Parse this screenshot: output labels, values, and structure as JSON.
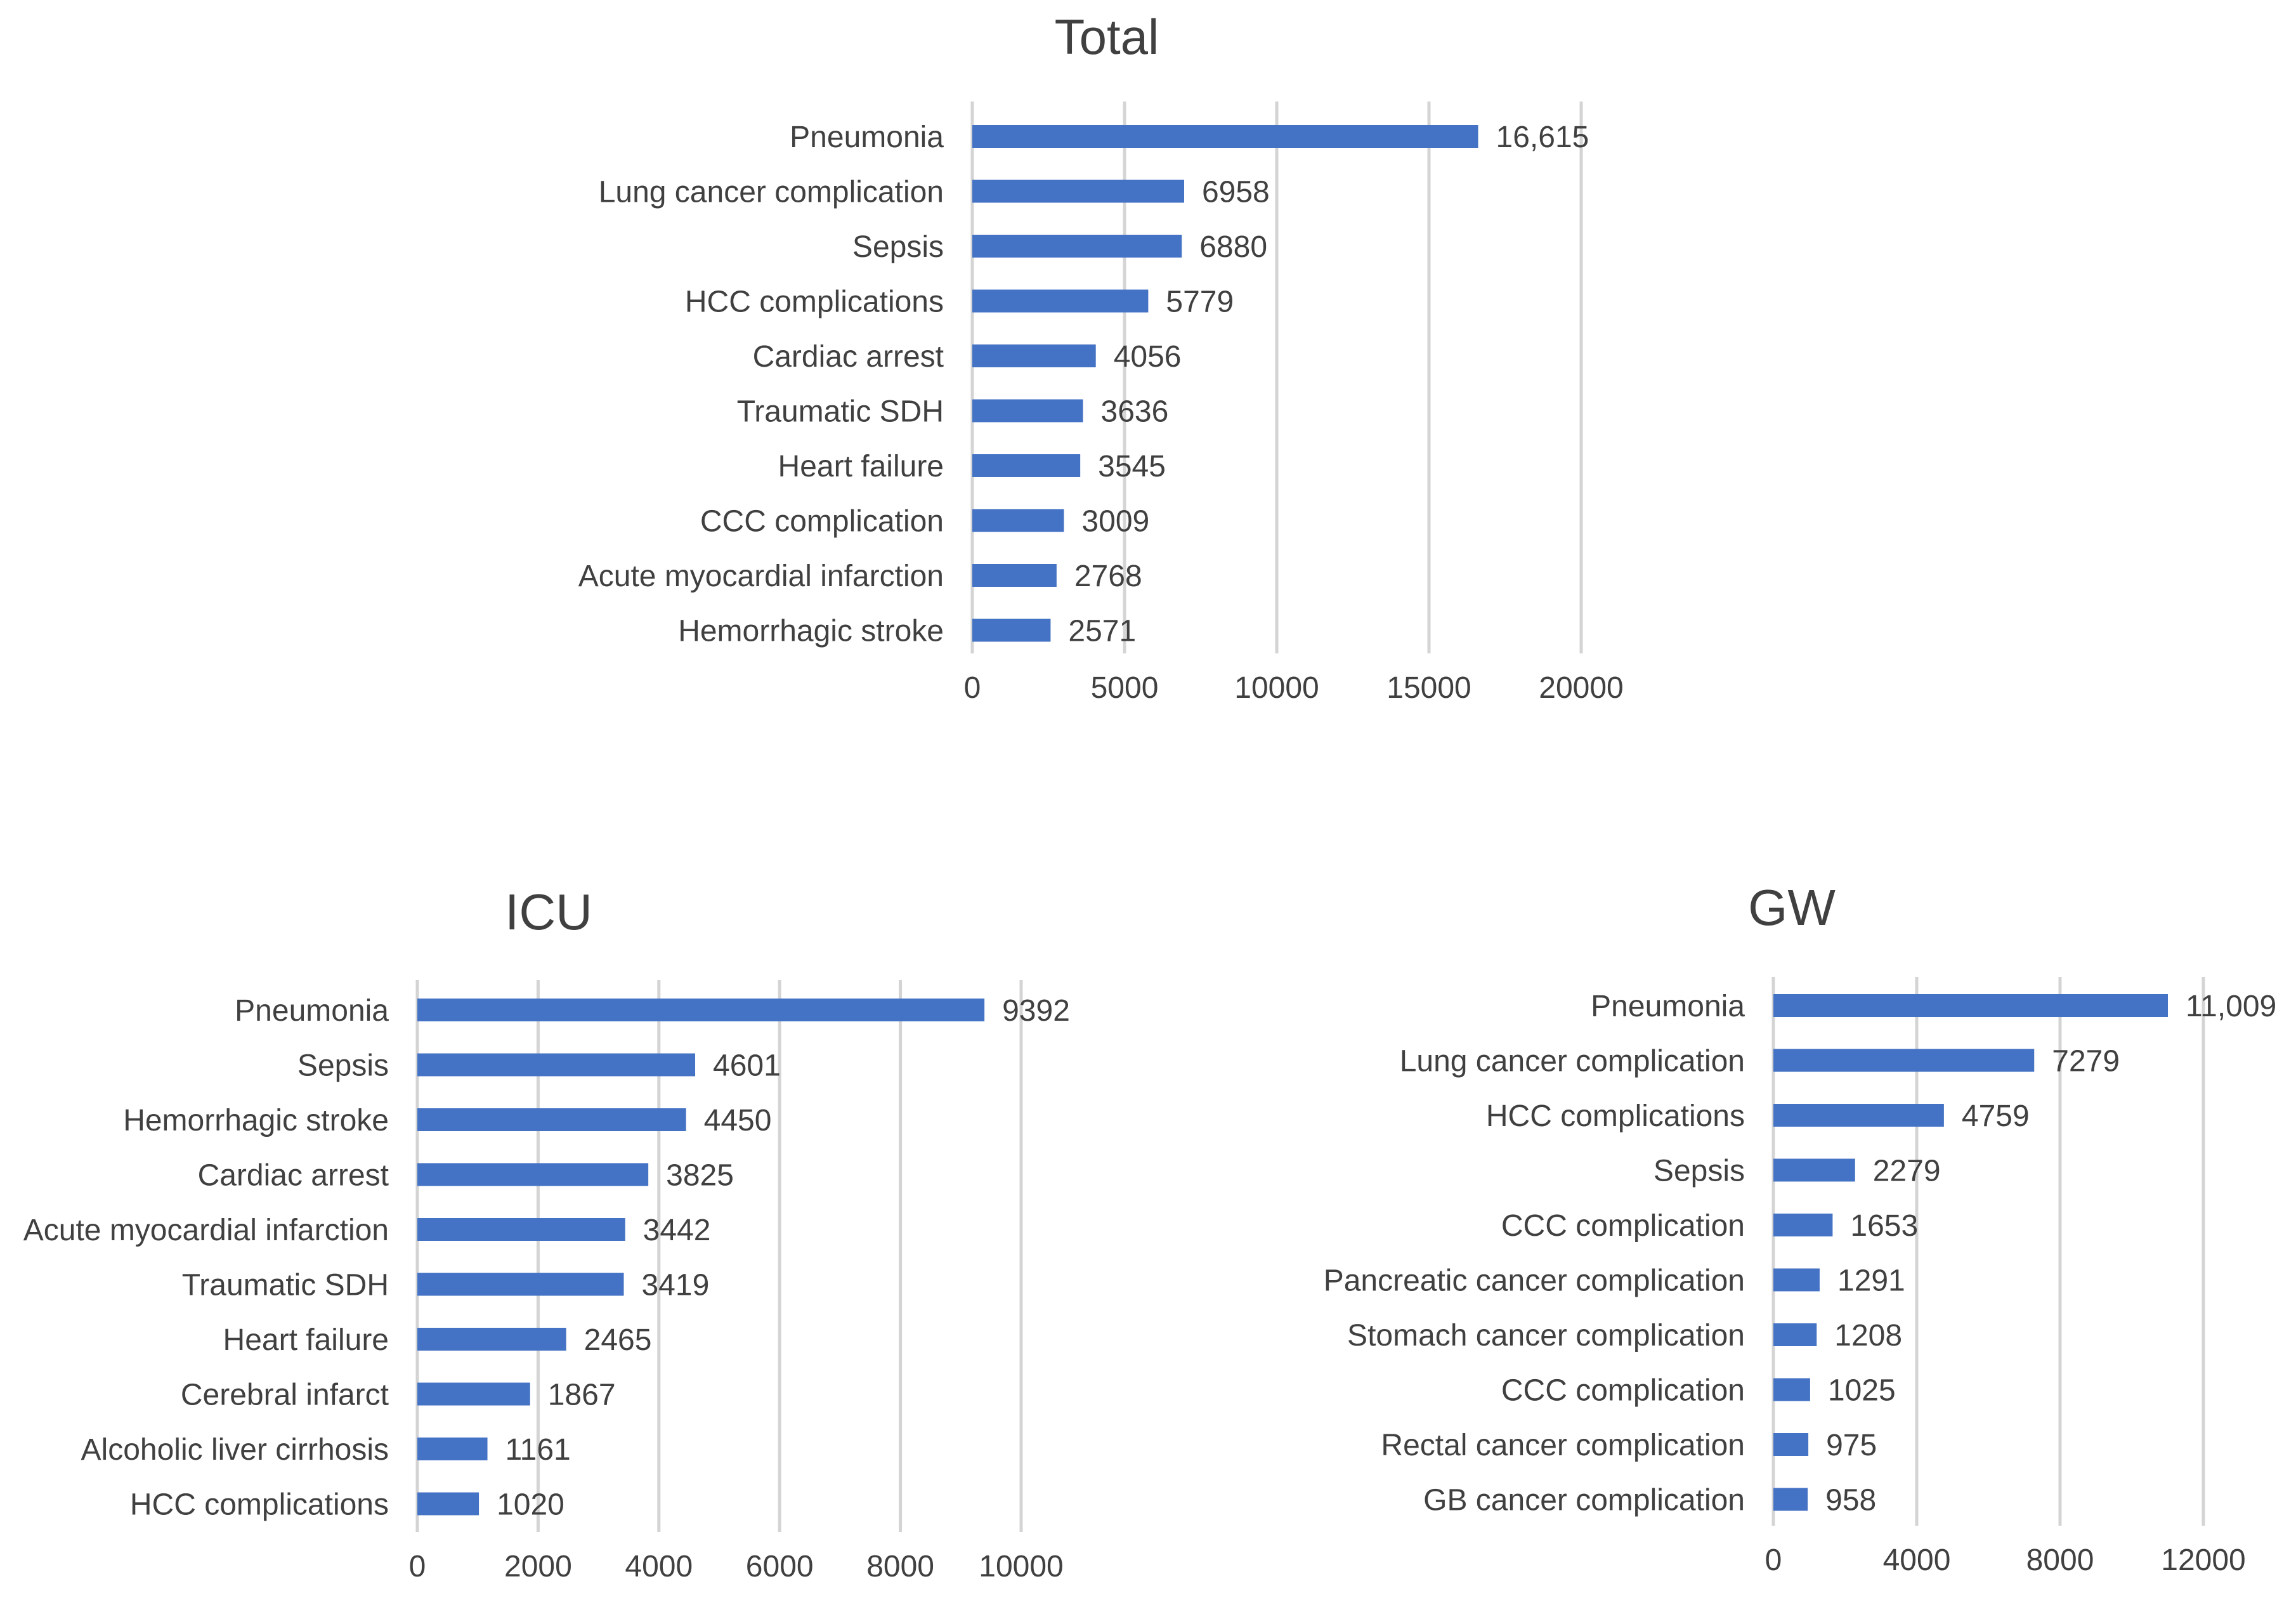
{
  "colors": {
    "bar": "#4472c4",
    "text": "#404040",
    "grid": "#d4d4d4",
    "background": "#ffffff"
  },
  "chart_data": [
    {
      "id": "total",
      "type": "bar",
      "orientation": "horizontal",
      "title": "Total",
      "categories": [
        "Pneumonia",
        "Lung cancer complication",
        "Sepsis",
        "HCC complications",
        "Cardiac arrest",
        "Traumatic SDH",
        "Heart failure",
        "CCC complication",
        "Acute myocardial infarction",
        "Hemorrhagic stroke"
      ],
      "values": [
        16615,
        6958,
        6880,
        5779,
        4056,
        3636,
        3545,
        3009,
        2768,
        2571
      ],
      "value_labels": [
        "16,615",
        "6958",
        "6880",
        "5779",
        "4056",
        "3636",
        "3545",
        "3009",
        "2768",
        "2571"
      ],
      "xlim": [
        0,
        20000
      ],
      "xticks": [
        0,
        5000,
        10000,
        15000,
        20000
      ],
      "xtick_labels": [
        "0",
        "5000",
        "10000",
        "15000",
        "20000"
      ],
      "xlabel": "",
      "ylabel": "",
      "grid": true,
      "legend": "none"
    },
    {
      "id": "icu",
      "type": "bar",
      "orientation": "horizontal",
      "title": "ICU",
      "categories": [
        "Pneumonia",
        "Sepsis",
        "Hemorrhagic stroke",
        "Cardiac arrest",
        "Acute myocardial infarction",
        "Traumatic SDH",
        "Heart failure",
        "Cerebral infarct",
        "Alcoholic liver cirrhosis",
        "HCC complications"
      ],
      "values": [
        9392,
        4601,
        4450,
        3825,
        3442,
        3419,
        2465,
        1867,
        1161,
        1020
      ],
      "value_labels": [
        "9392",
        "4601",
        "4450",
        "3825",
        "3442",
        "3419",
        "2465",
        "1867",
        "1161",
        "1020"
      ],
      "xlim": [
        0,
        10000
      ],
      "xticks": [
        0,
        2000,
        4000,
        6000,
        8000,
        10000
      ],
      "xtick_labels": [
        "0",
        "2000",
        "4000",
        "6000",
        "8000",
        "10000"
      ],
      "xlabel": "",
      "ylabel": "",
      "grid": true,
      "legend": "none"
    },
    {
      "id": "gw",
      "type": "bar",
      "orientation": "horizontal",
      "title": "GW",
      "categories": [
        "Pneumonia",
        "Lung cancer complication",
        "HCC complications",
        "Sepsis",
        "CCC complication",
        "Pancreatic cancer complication",
        "Stomach cancer complication",
        "CCC complication",
        "Rectal cancer complication",
        "GB cancer complication"
      ],
      "values": [
        11009,
        7279,
        4759,
        2279,
        1653,
        1291,
        1208,
        1025,
        975,
        958
      ],
      "value_labels": [
        "11,009",
        "7279",
        "4759",
        "2279",
        "1653",
        "1291",
        "1208",
        "1025",
        "975",
        "958"
      ],
      "xlim": [
        0,
        12000
      ],
      "xticks": [
        0,
        4000,
        8000,
        12000
      ],
      "xtick_labels": [
        "0",
        "4000",
        "8000",
        "12000"
      ],
      "xlabel": "",
      "ylabel": "",
      "grid": true,
      "legend": "none"
    }
  ]
}
